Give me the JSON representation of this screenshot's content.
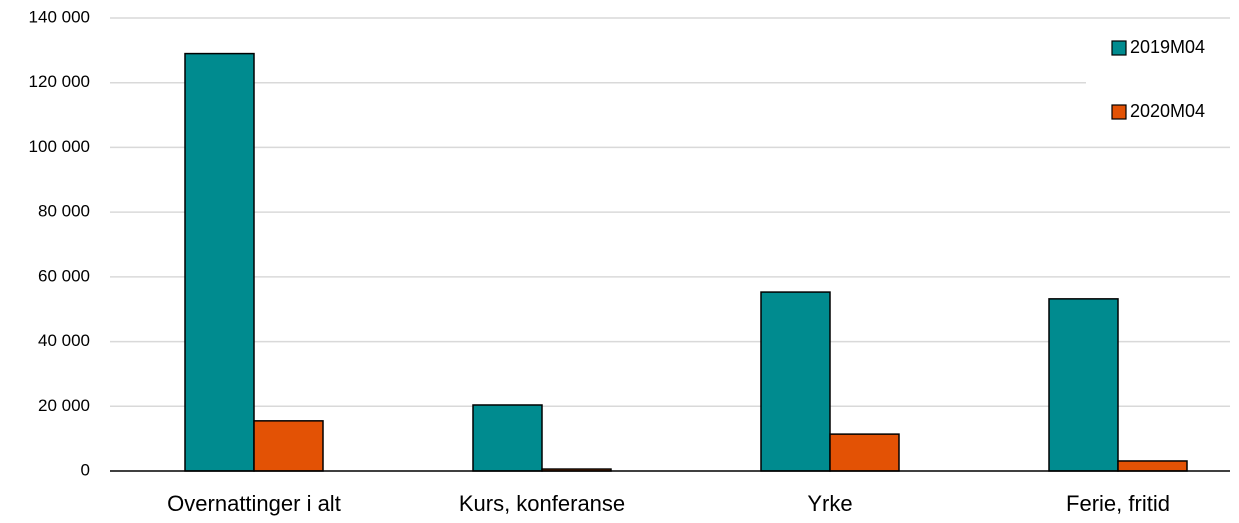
{
  "chart_data": {
    "type": "bar",
    "categories": [
      "Overnattinger i alt",
      "Kurs, konferanse",
      "Yrke",
      "Ferie, fritid"
    ],
    "series": [
      {
        "name": "2019M04",
        "color": "#008b8f",
        "values": [
          129000,
          20400,
          55300,
          53200
        ]
      },
      {
        "name": "2020M04",
        "color": "#e35205",
        "values": [
          15500,
          600,
          11400,
          3100
        ]
      }
    ],
    "ylim": [
      0,
      140000
    ],
    "yticks": [
      0,
      {
        "value": 20000,
        "label": "20 000"
      },
      {
        "value": 40000,
        "label": "40 000"
      },
      {
        "value": 60000,
        "label": "60 000"
      },
      {
        "value": 80000,
        "label": "80 000"
      },
      {
        "value": 100000,
        "label": "100 000"
      },
      {
        "value": 120000,
        "label": "120 000"
      },
      {
        "value": 140000,
        "label": "140 000"
      }
    ],
    "grid": true,
    "legend": "top-right"
  }
}
